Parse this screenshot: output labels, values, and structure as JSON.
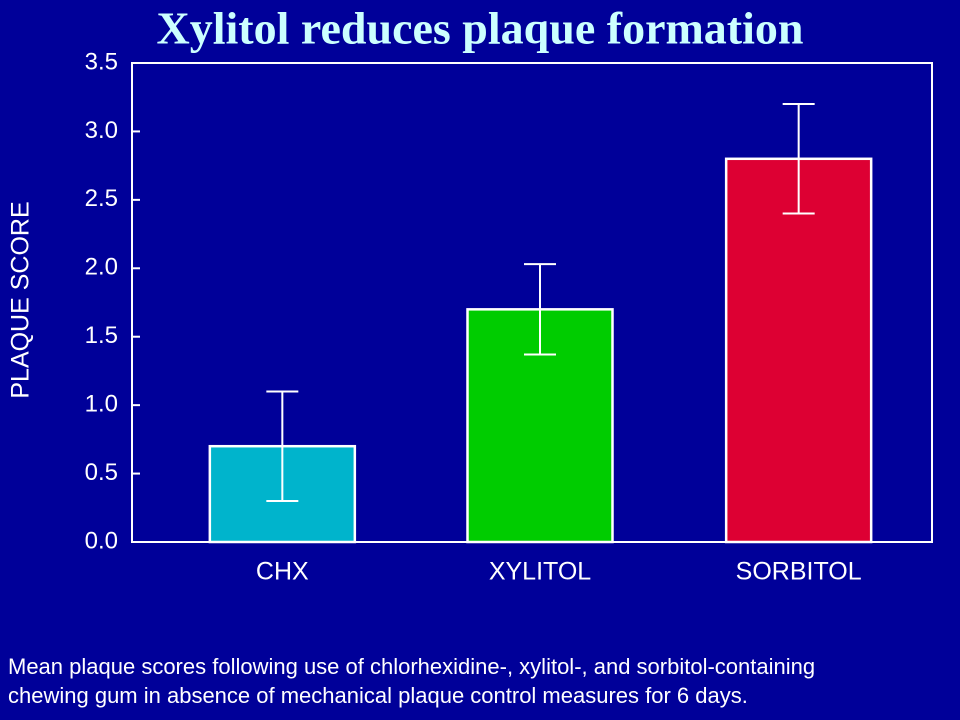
{
  "chart_data": {
    "type": "bar",
    "title": "Xylitol reduces plaque formation",
    "y_label": "PLAQUE SCORE",
    "categories": [
      "CHX",
      "XYLITOL",
      "SORBITOL"
    ],
    "values": [
      0.7,
      1.7,
      2.8
    ],
    "errors": [
      0.4,
      0.33,
      0.4
    ],
    "colors": [
      "#00b4cc",
      "#00cc00",
      "#dd0033"
    ],
    "ylim": [
      0,
      3.5
    ],
    "yticks": [
      {
        "value": 0,
        "label": "0.0"
      },
      0.5,
      {
        "value": 1,
        "label": "1.0"
      },
      1.5,
      {
        "value": 2,
        "label": "2.0"
      },
      2.5,
      {
        "value": 3,
        "label": "3.0"
      },
      3.5
    ],
    "caption": [
      "Mean plaque scores following use of chlorhexidine-, xylitol-, and sorbitol-containing",
      "chewing gum in absence of mechanical plaque control measures for 6 days."
    ]
  }
}
